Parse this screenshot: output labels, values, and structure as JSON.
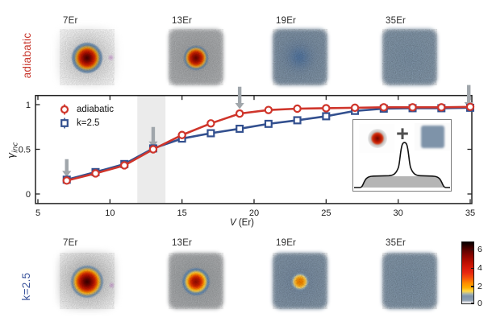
{
  "figure": {
    "rows": [
      {
        "side_label": "adiabatic",
        "side_color": "#c8382e",
        "panels": [
          "7Er",
          "13Er",
          "19Er",
          "35Er"
        ]
      },
      {
        "side_label": "k=2.5",
        "side_color": "#3a539b",
        "panels": [
          "7Er",
          "13Er",
          "19Er",
          "35Er"
        ]
      }
    ],
    "colorbar": {
      "orientation": "vertical",
      "tick_labels": [
        "6",
        "4",
        "2",
        "0"
      ]
    },
    "inset": {
      "plus": "+"
    }
  },
  "chart_data": {
    "type": "line",
    "xlabel_var": "V",
    "xlabel_unit": " (Er)",
    "ylabel_symbol": "γ",
    "ylabel_sub": "inc",
    "xlim": [
      4.8,
      35.15
    ],
    "ylim": [
      -0.107,
      1.102
    ],
    "x_ticks": [
      5,
      10,
      15,
      20,
      25,
      30,
      35
    ],
    "y_ticks": [
      0,
      0.5,
      1
    ],
    "y_tick_labels": [
      "0",
      "0.5",
      "1"
    ],
    "grid": false,
    "shaded_band_x": [
      11.9,
      13.85
    ],
    "band_color": "#ebebeb",
    "x": [
      7,
      9,
      11,
      13,
      15,
      17,
      19,
      21,
      23,
      25,
      27,
      29,
      31,
      33,
      35
    ],
    "series": [
      {
        "name": "adiabatic",
        "color": "#cf352b",
        "marker": "circle",
        "values": [
          0.15,
          0.23,
          0.32,
          0.5,
          0.66,
          0.79,
          0.9,
          0.94,
          0.955,
          0.96,
          0.965,
          0.97,
          0.97,
          0.97,
          0.975
        ]
      },
      {
        "name": "k=2.5",
        "color": "#33508f",
        "marker": "square",
        "values": [
          0.16,
          0.245,
          0.335,
          0.51,
          0.62,
          0.68,
          0.73,
          0.785,
          0.825,
          0.87,
          0.93,
          0.955,
          0.96,
          0.96,
          0.965
        ]
      }
    ],
    "error_bar": 0.03,
    "arrow_color": "#a0a6ab",
    "arrows": [
      {
        "v": 7,
        "from_g": 0.39,
        "to_g": 0.19
      },
      {
        "v": 13,
        "from_g": 0.75,
        "to_g": 0.52
      },
      {
        "v": 19,
        "from_g": 1.2,
        "to_g": 0.95
      },
      {
        "v": 34.9,
        "from_g": 1.22,
        "to_g": 0.96
      }
    ],
    "legend_position": "top-left"
  }
}
